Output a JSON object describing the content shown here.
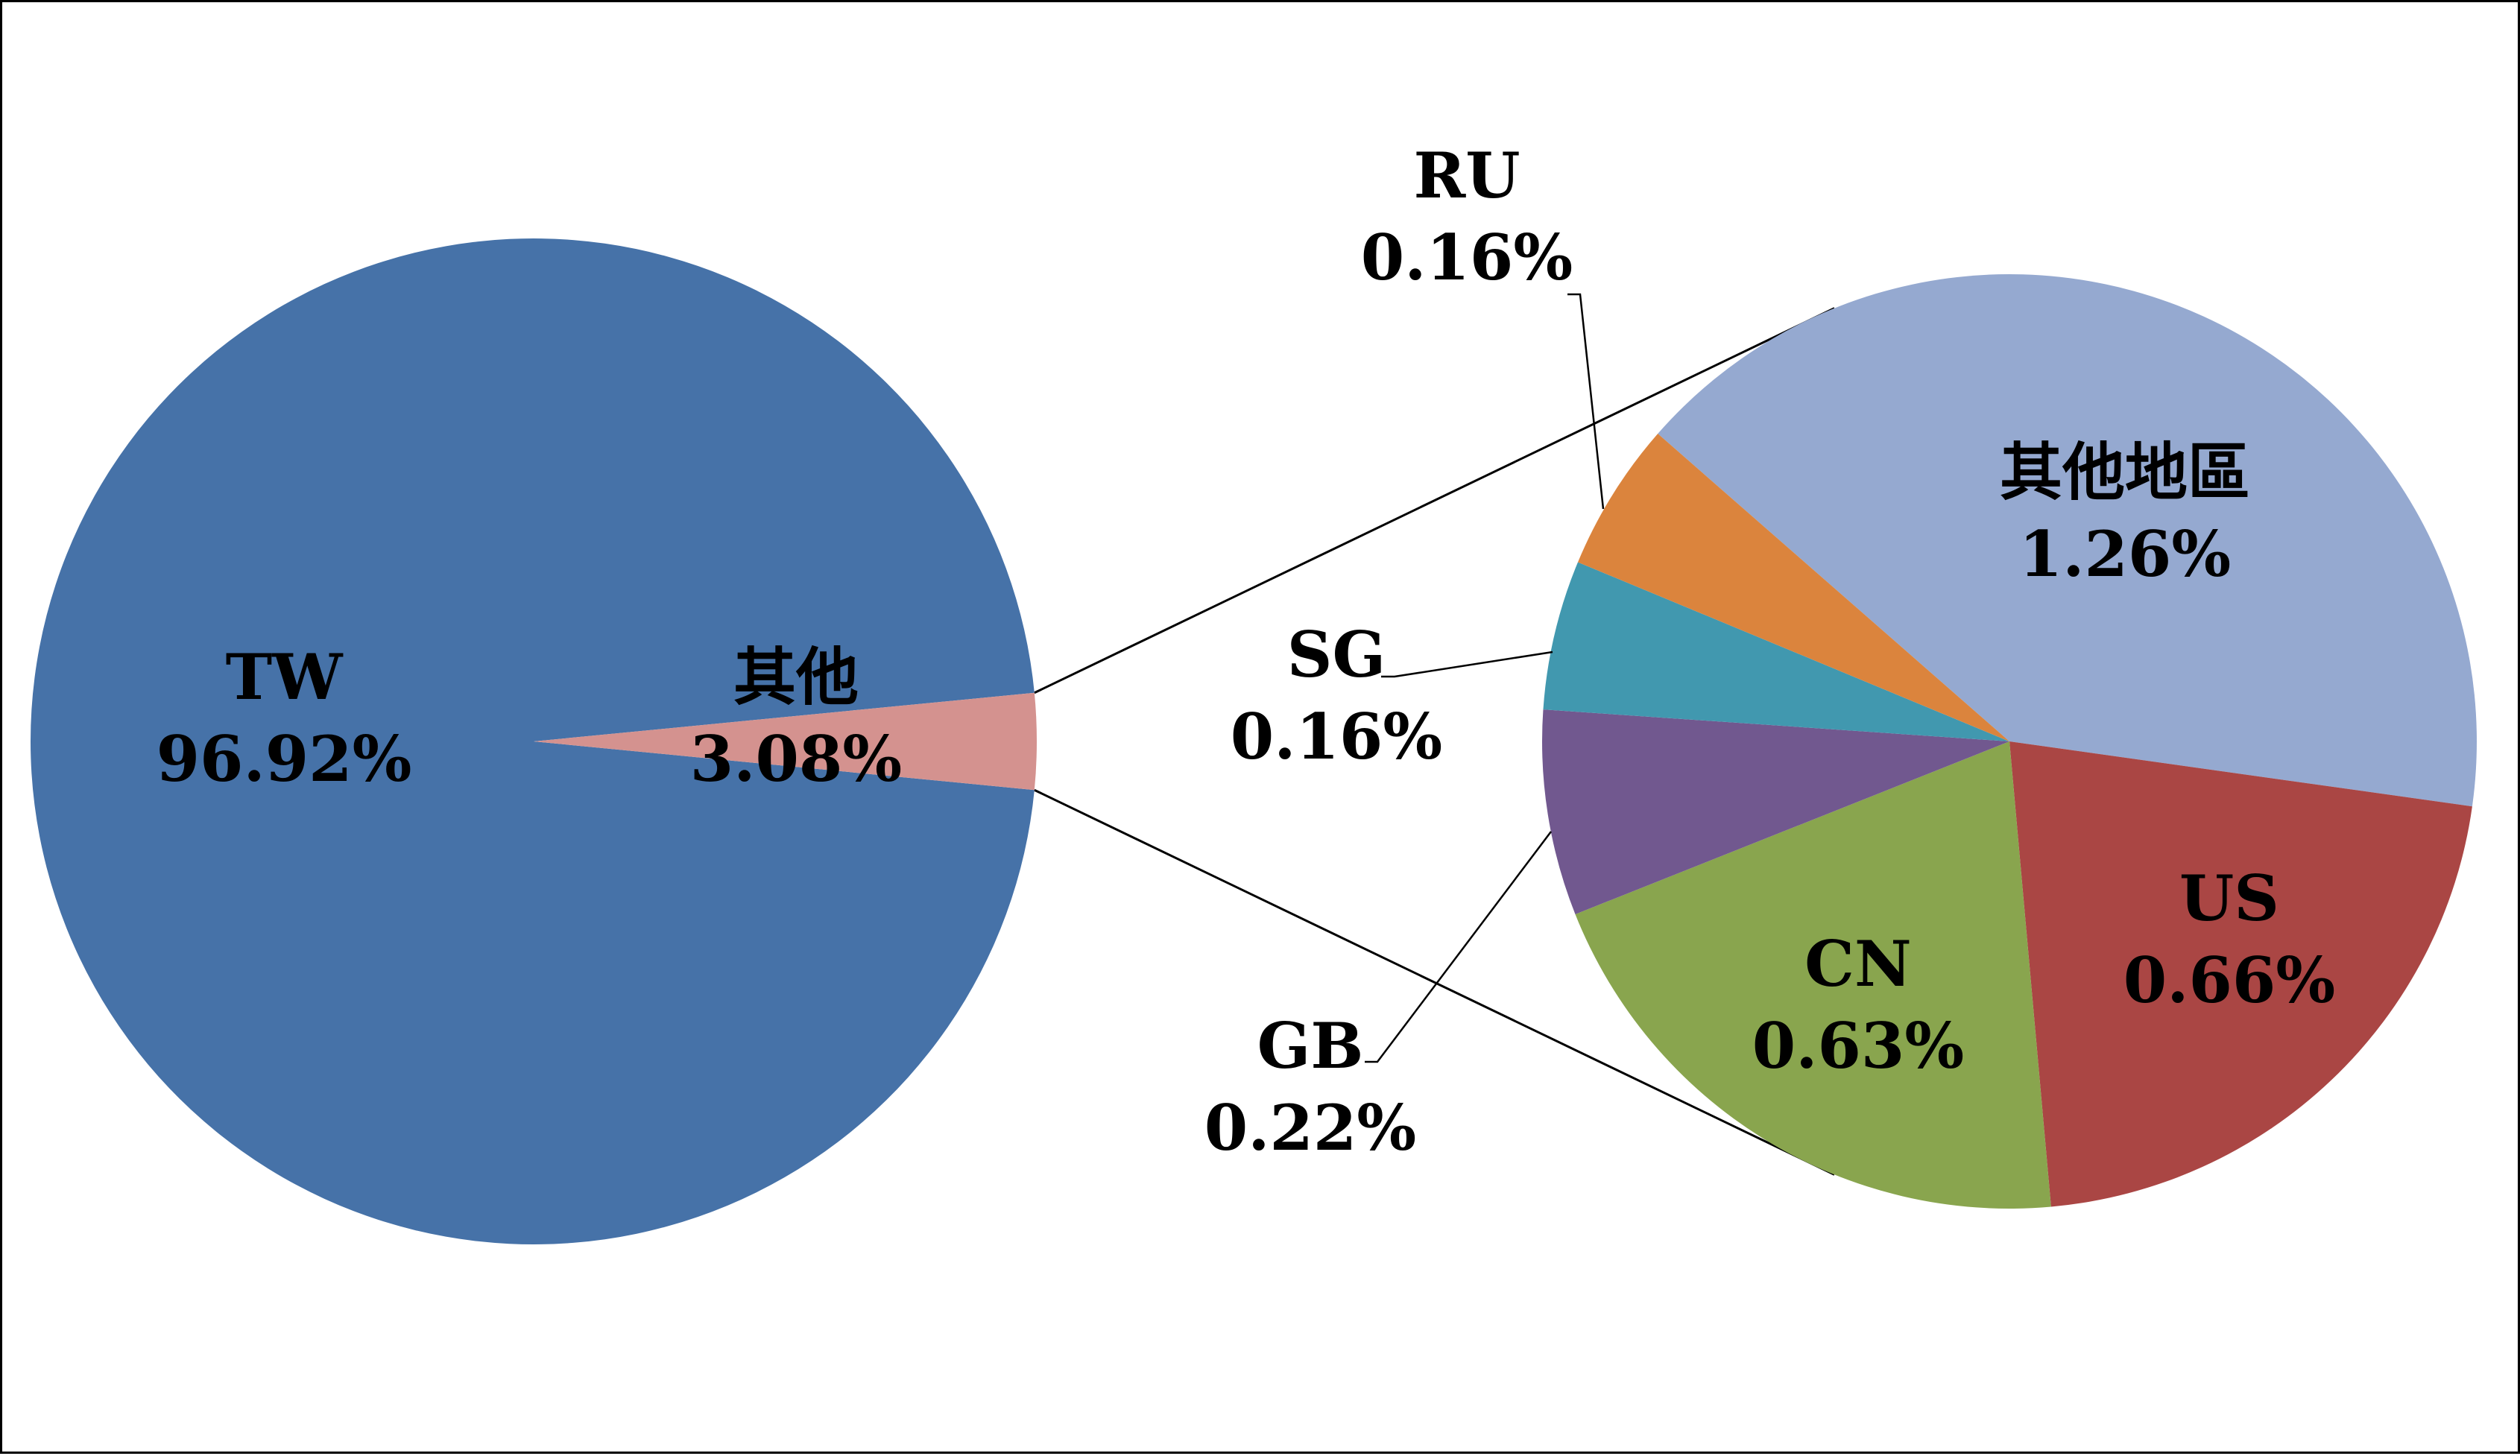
{
  "chart_data": {
    "type": "pie",
    "subtype": "pie-of-pie",
    "main_pie": {
      "slices": [
        {
          "label": "TW",
          "value": 96.92,
          "value_text": "96.92%",
          "color": "#4672A8"
        },
        {
          "label": "其他",
          "value": 3.08,
          "value_text": "3.08%",
          "color": "#D4928F"
        }
      ]
    },
    "secondary_pie": {
      "parent_label": "其他",
      "slices": [
        {
          "label": "其他地區",
          "value": 1.26,
          "value_text": "1.26%",
          "color": "#95A9D0"
        },
        {
          "label": "US",
          "value": 0.66,
          "value_text": "0.66%",
          "color": "#AA4644"
        },
        {
          "label": "CN",
          "value": 0.63,
          "value_text": "0.63%",
          "color": "#89A54E"
        },
        {
          "label": "GB",
          "value": 0.22,
          "value_text": "0.22%",
          "color": "#71588F"
        },
        {
          "label": "SG",
          "value": 0.16,
          "value_text": "0.16%",
          "color": "#4198AF"
        },
        {
          "label": "RU",
          "value": 0.16,
          "value_text": "0.16%",
          "color": "#DB843D"
        }
      ]
    },
    "connector_color": "#000000",
    "legend": "none"
  }
}
